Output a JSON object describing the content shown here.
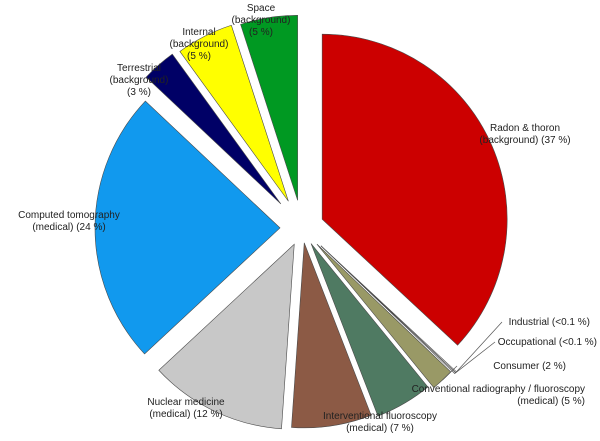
{
  "chart_data": {
    "type": "pie",
    "title": "",
    "slices": [
      {
        "label": [
          "Radon & thoron",
          "(background) (37 %)"
        ],
        "value": 37,
        "color": "#cc0000"
      },
      {
        "label": [
          "Industrial (<0.1 %)"
        ],
        "value": 0.1,
        "color": "#ffffff"
      },
      {
        "label": [
          "Occupational (<0.1 %)"
        ],
        "value": 0.1,
        "color": "#ffffff"
      },
      {
        "label": [
          "Consumer (2 %)"
        ],
        "value": 2,
        "color": "#999966"
      },
      {
        "label": [
          "Conventional radiography / fluoroscopy",
          "(medical) (5 %)"
        ],
        "value": 5,
        "color": "#4f7a62"
      },
      {
        "label": [
          "Interventional fluoroscopy",
          "(medical) (7 %)"
        ],
        "value": 7,
        "color": "#8c5a45"
      },
      {
        "label": [
          "Nuclear medicine",
          "(medical) (12 %)"
        ],
        "value": 12,
        "color": "#c8c8c8"
      },
      {
        "label": [
          "Computed tomography",
          "(medical) (24 %)"
        ],
        "value": 24,
        "color": "#1199ee"
      },
      {
        "label": [
          "Terrestrial",
          "(background)",
          "(3 %)"
        ],
        "value": 3,
        "color": "#000066"
      },
      {
        "label": [
          "Internal",
          "(background)",
          "(5 %)"
        ],
        "value": 5,
        "color": "#ffff00"
      },
      {
        "label": [
          "Space",
          "(background)",
          "(5 %)"
        ],
        "value": 5,
        "color": "#009922"
      }
    ]
  }
}
